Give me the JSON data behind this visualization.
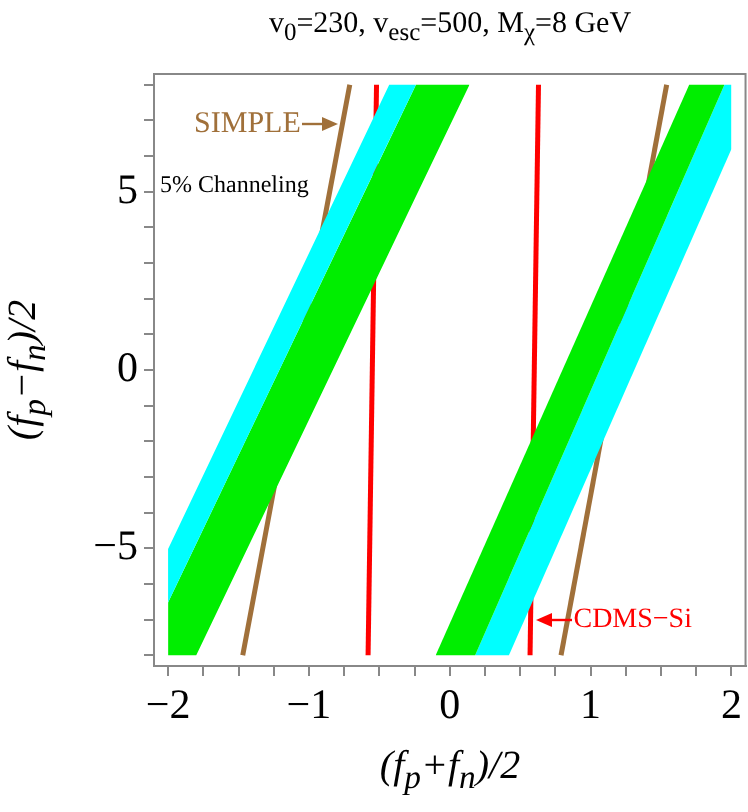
{
  "chart_data": {
    "type": "line",
    "title": "v$_{0}$=230, v$_{esc}$=500, M$_{χ}$=8 GeV",
    "xlabel": "(f$_{p}$+f$_{n}$)/2",
    "ylabel": "(f$_{p}$−f$_{n}$)/2",
    "xlim": [
      -2.1,
      2.1
    ],
    "ylim": [
      -8.3,
      8.3
    ],
    "xticks": [
      {
        "value": -2,
        "label": "−2"
      },
      {
        "value": -1.75,
        "label": null
      },
      {
        "value": -1.5,
        "label": null
      },
      {
        "value": -1.25,
        "label": null
      },
      {
        "value": -1,
        "label": "−1"
      },
      {
        "value": -0.75,
        "label": null
      },
      {
        "value": -0.5,
        "label": null
      },
      {
        "value": -0.25,
        "label": null
      },
      0,
      {
        "value": 0.25,
        "label": null
      },
      {
        "value": 0.5,
        "label": null
      },
      {
        "value": 0.75,
        "label": null
      },
      1,
      {
        "value": 1.25,
        "label": null
      },
      {
        "value": 1.5,
        "label": null
      },
      {
        "value": 1.75,
        "label": null
      },
      2
    ],
    "yticks": [
      {
        "value": -8,
        "label": null
      },
      {
        "value": -7,
        "label": null
      },
      {
        "value": -6,
        "label": null
      },
      {
        "value": -5,
        "label": "−5"
      },
      {
        "value": -4,
        "label": null
      },
      {
        "value": -3,
        "label": null
      },
      {
        "value": -2,
        "label": null
      },
      {
        "value": -1,
        "label": null
      },
      0,
      {
        "value": 1,
        "label": null
      },
      {
        "value": 2,
        "label": null
      },
      {
        "value": 3,
        "label": null
      },
      {
        "value": 4,
        "label": null
      },
      5,
      {
        "value": 6,
        "label": null
      },
      {
        "value": 7,
        "label": null
      },
      {
        "value": 8,
        "label": null
      }
    ],
    "series": [
      {
        "type": "area",
        "color": "#00ffff",
        "x": [
          -2,
          -0.43,
          -0.24
        ],
        "values": [
          null,
          null,
          null
        ],
        "lower": [
          -6.52,
          6.44,
          8
        ],
        "upper": [
          -5.02,
          8,
          8
        ]
      },
      {
        "type": "area",
        "color": "#00ee00",
        "x": [
          -2,
          -1.8,
          -0.24,
          0.14
        ],
        "values": [
          null,
          null,
          null,
          null
        ],
        "lower": [
          -8,
          -8,
          4.87,
          8
        ],
        "upper": [
          -6.52,
          -4.87,
          8,
          8
        ]
      },
      {
        "type": "area",
        "color": "#00ee00",
        "x": [
          -0.1,
          0.18,
          1.7,
          1.95
        ],
        "values": [
          null,
          null,
          null,
          null
        ],
        "lower": [
          -8,
          -8,
          5.74,
          8
        ],
        "upper": [
          -8,
          -5.51,
          8,
          8
        ]
      },
      {
        "type": "area",
        "color": "#00ffff",
        "x": [
          0.18,
          0.42,
          1.95,
          2
        ],
        "values": [
          null,
          null,
          null,
          null
        ],
        "lower": [
          -8,
          -8,
          5.75,
          6.2
        ],
        "upper": [
          -8,
          -5.83,
          8,
          8
        ]
      },
      {
        "color": "#ff0000",
        "x": [
          -0.58,
          -0.52
        ],
        "values": [
          -8,
          8
        ]
      },
      {
        "color": "#ff0000",
        "x": [
          0.57,
          0.63
        ],
        "values": [
          -8,
          8
        ]
      },
      {
        "color": "#a0703a",
        "x": [
          -1.47,
          -0.71
        ],
        "values": [
          -8,
          8
        ]
      },
      {
        "color": "#a0703a",
        "x": [
          0.79,
          1.54
        ],
        "values": [
          -8,
          8
        ]
      }
    ],
    "annotations": [
      {
        "text": "SIMPLE",
        "x": -0.76,
        "y": 6.9
      },
      {
        "text": "CDMS−Si",
        "x": 0.58,
        "y": -7
      },
      "5% Channeling"
    ],
    "grid": false,
    "legend": false,
    "line_style": "solid",
    "marker": "none"
  }
}
